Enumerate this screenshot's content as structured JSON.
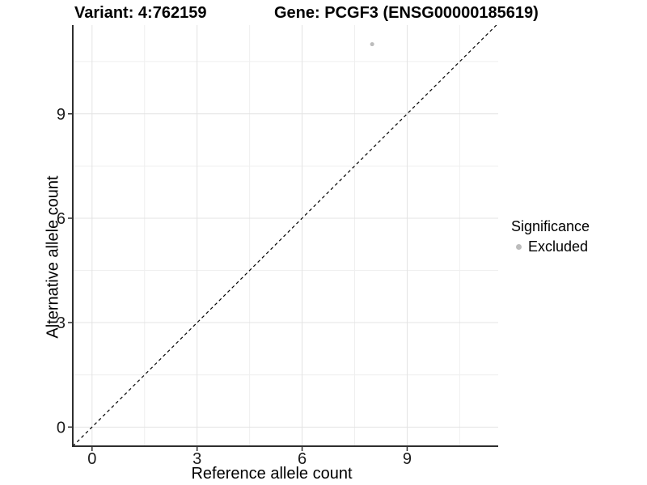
{
  "chart_data": {
    "type": "scatter",
    "title_left": "Variant: 4:762159",
    "title_right": "Gene: PCGF3 (ENSG00000185619)",
    "xlabel": "Reference allele count",
    "ylabel": "Alternative allele count",
    "xlim": [
      -0.55,
      11.6
    ],
    "ylim": [
      -0.55,
      11.55
    ],
    "x_ticks": [
      0,
      3,
      6,
      9
    ],
    "y_ticks": [
      0,
      3,
      6,
      9
    ],
    "x_minor_ticks": [
      1.5,
      4.5,
      7.5,
      10.5
    ],
    "y_minor_ticks": [
      1.5,
      4.5,
      7.5,
      10.5
    ],
    "grid": "on",
    "series": [
      {
        "name": "Excluded",
        "color": "#bcbcbc",
        "points": [
          {
            "x": 8,
            "y": 11
          }
        ]
      }
    ],
    "reference_line": {
      "type": "identity",
      "equation": "y = x",
      "style": "dashed",
      "color": "#000000"
    },
    "legend": {
      "title": "Significance",
      "position": "right",
      "entries": [
        {
          "label": "Excluded",
          "color": "#bcbcbc"
        }
      ]
    }
  },
  "colors": {
    "background": "#ffffff",
    "axis_line": "#2e2e2e",
    "tick_label": "#1a1a1a",
    "grid_major": "#e3e3e3",
    "grid_minor": "#efefef",
    "reference_line": "#000000"
  }
}
